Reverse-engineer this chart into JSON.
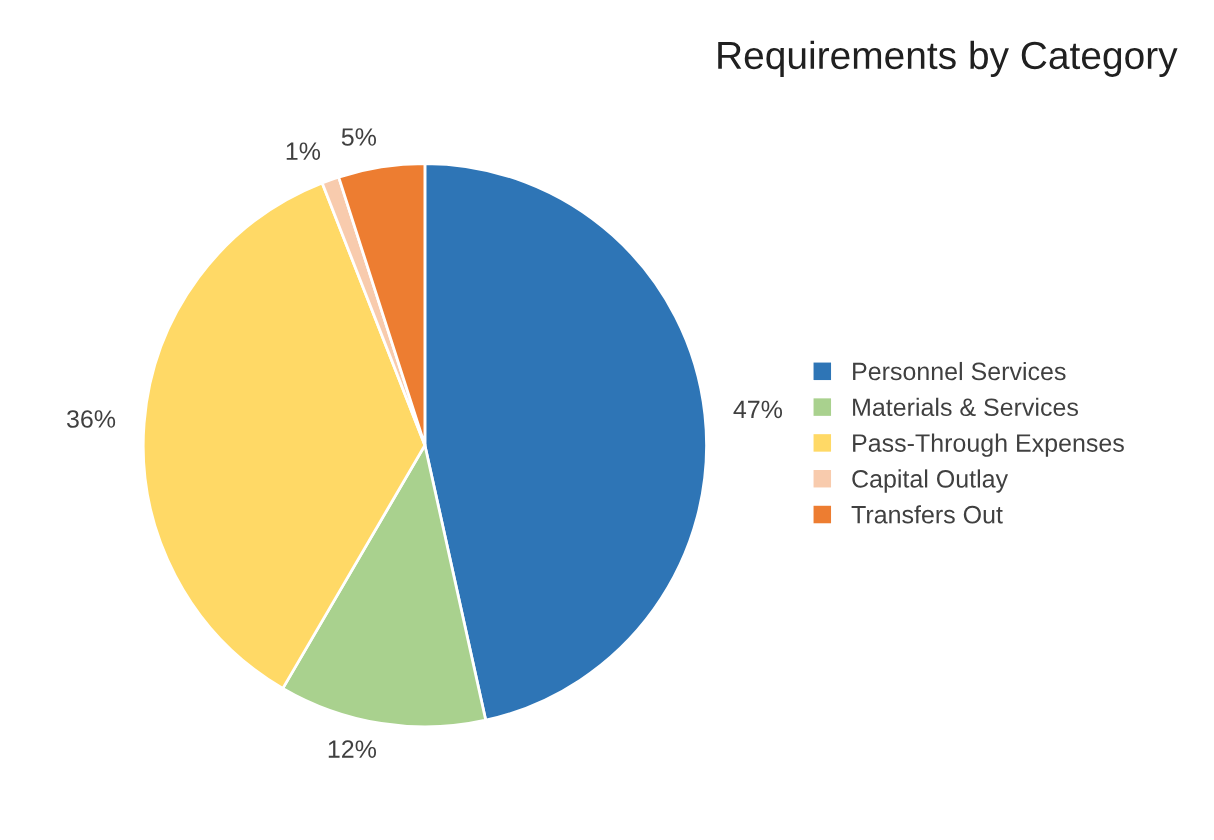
{
  "chart_data": {
    "type": "pie",
    "title": "Requirements by Category",
    "categories": [
      "Personnel Services",
      "Materials & Services",
      "Pass-Through Expenses",
      "Capital Outlay",
      "Transfers Out"
    ],
    "values": [
      47,
      12,
      36,
      1,
      5
    ],
    "colors": [
      "#2e75b6",
      "#a9d18e",
      "#ffd966",
      "#f8cbad",
      "#ed7d31"
    ],
    "value_labels": [
      "47%",
      "12%",
      "36%",
      "1%",
      "5%"
    ],
    "legend": "right"
  }
}
